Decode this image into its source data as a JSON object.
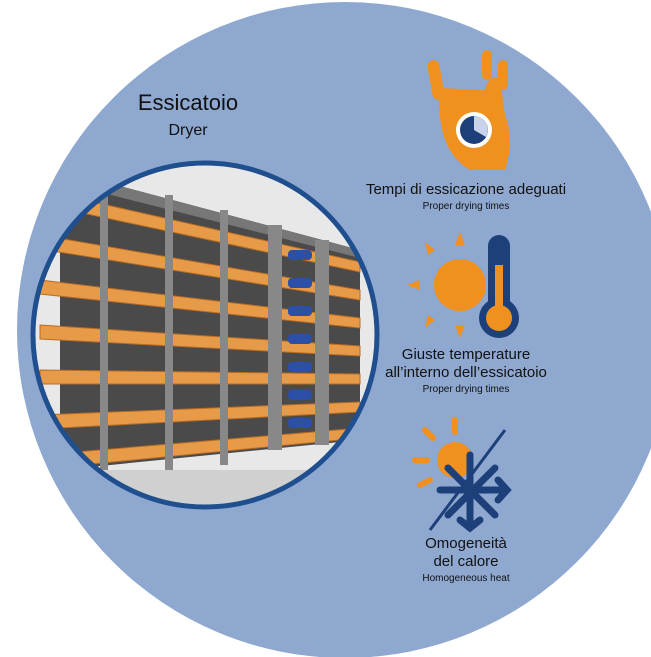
{
  "header": {
    "title": "Essicatoio",
    "subtitle": "Dryer"
  },
  "features": [
    {
      "title": [
        "Tempi di essicazione adeguati"
      ],
      "subtitle": "Proper drying times"
    },
    {
      "title": [
        "Giuste temperature",
        "all’interno dell’essicatoio"
      ],
      "subtitle": "Proper drying times"
    },
    {
      "title": [
        "Omogeneità",
        "del calore"
      ],
      "subtitle": "Homogeneous heat"
    }
  ]
}
